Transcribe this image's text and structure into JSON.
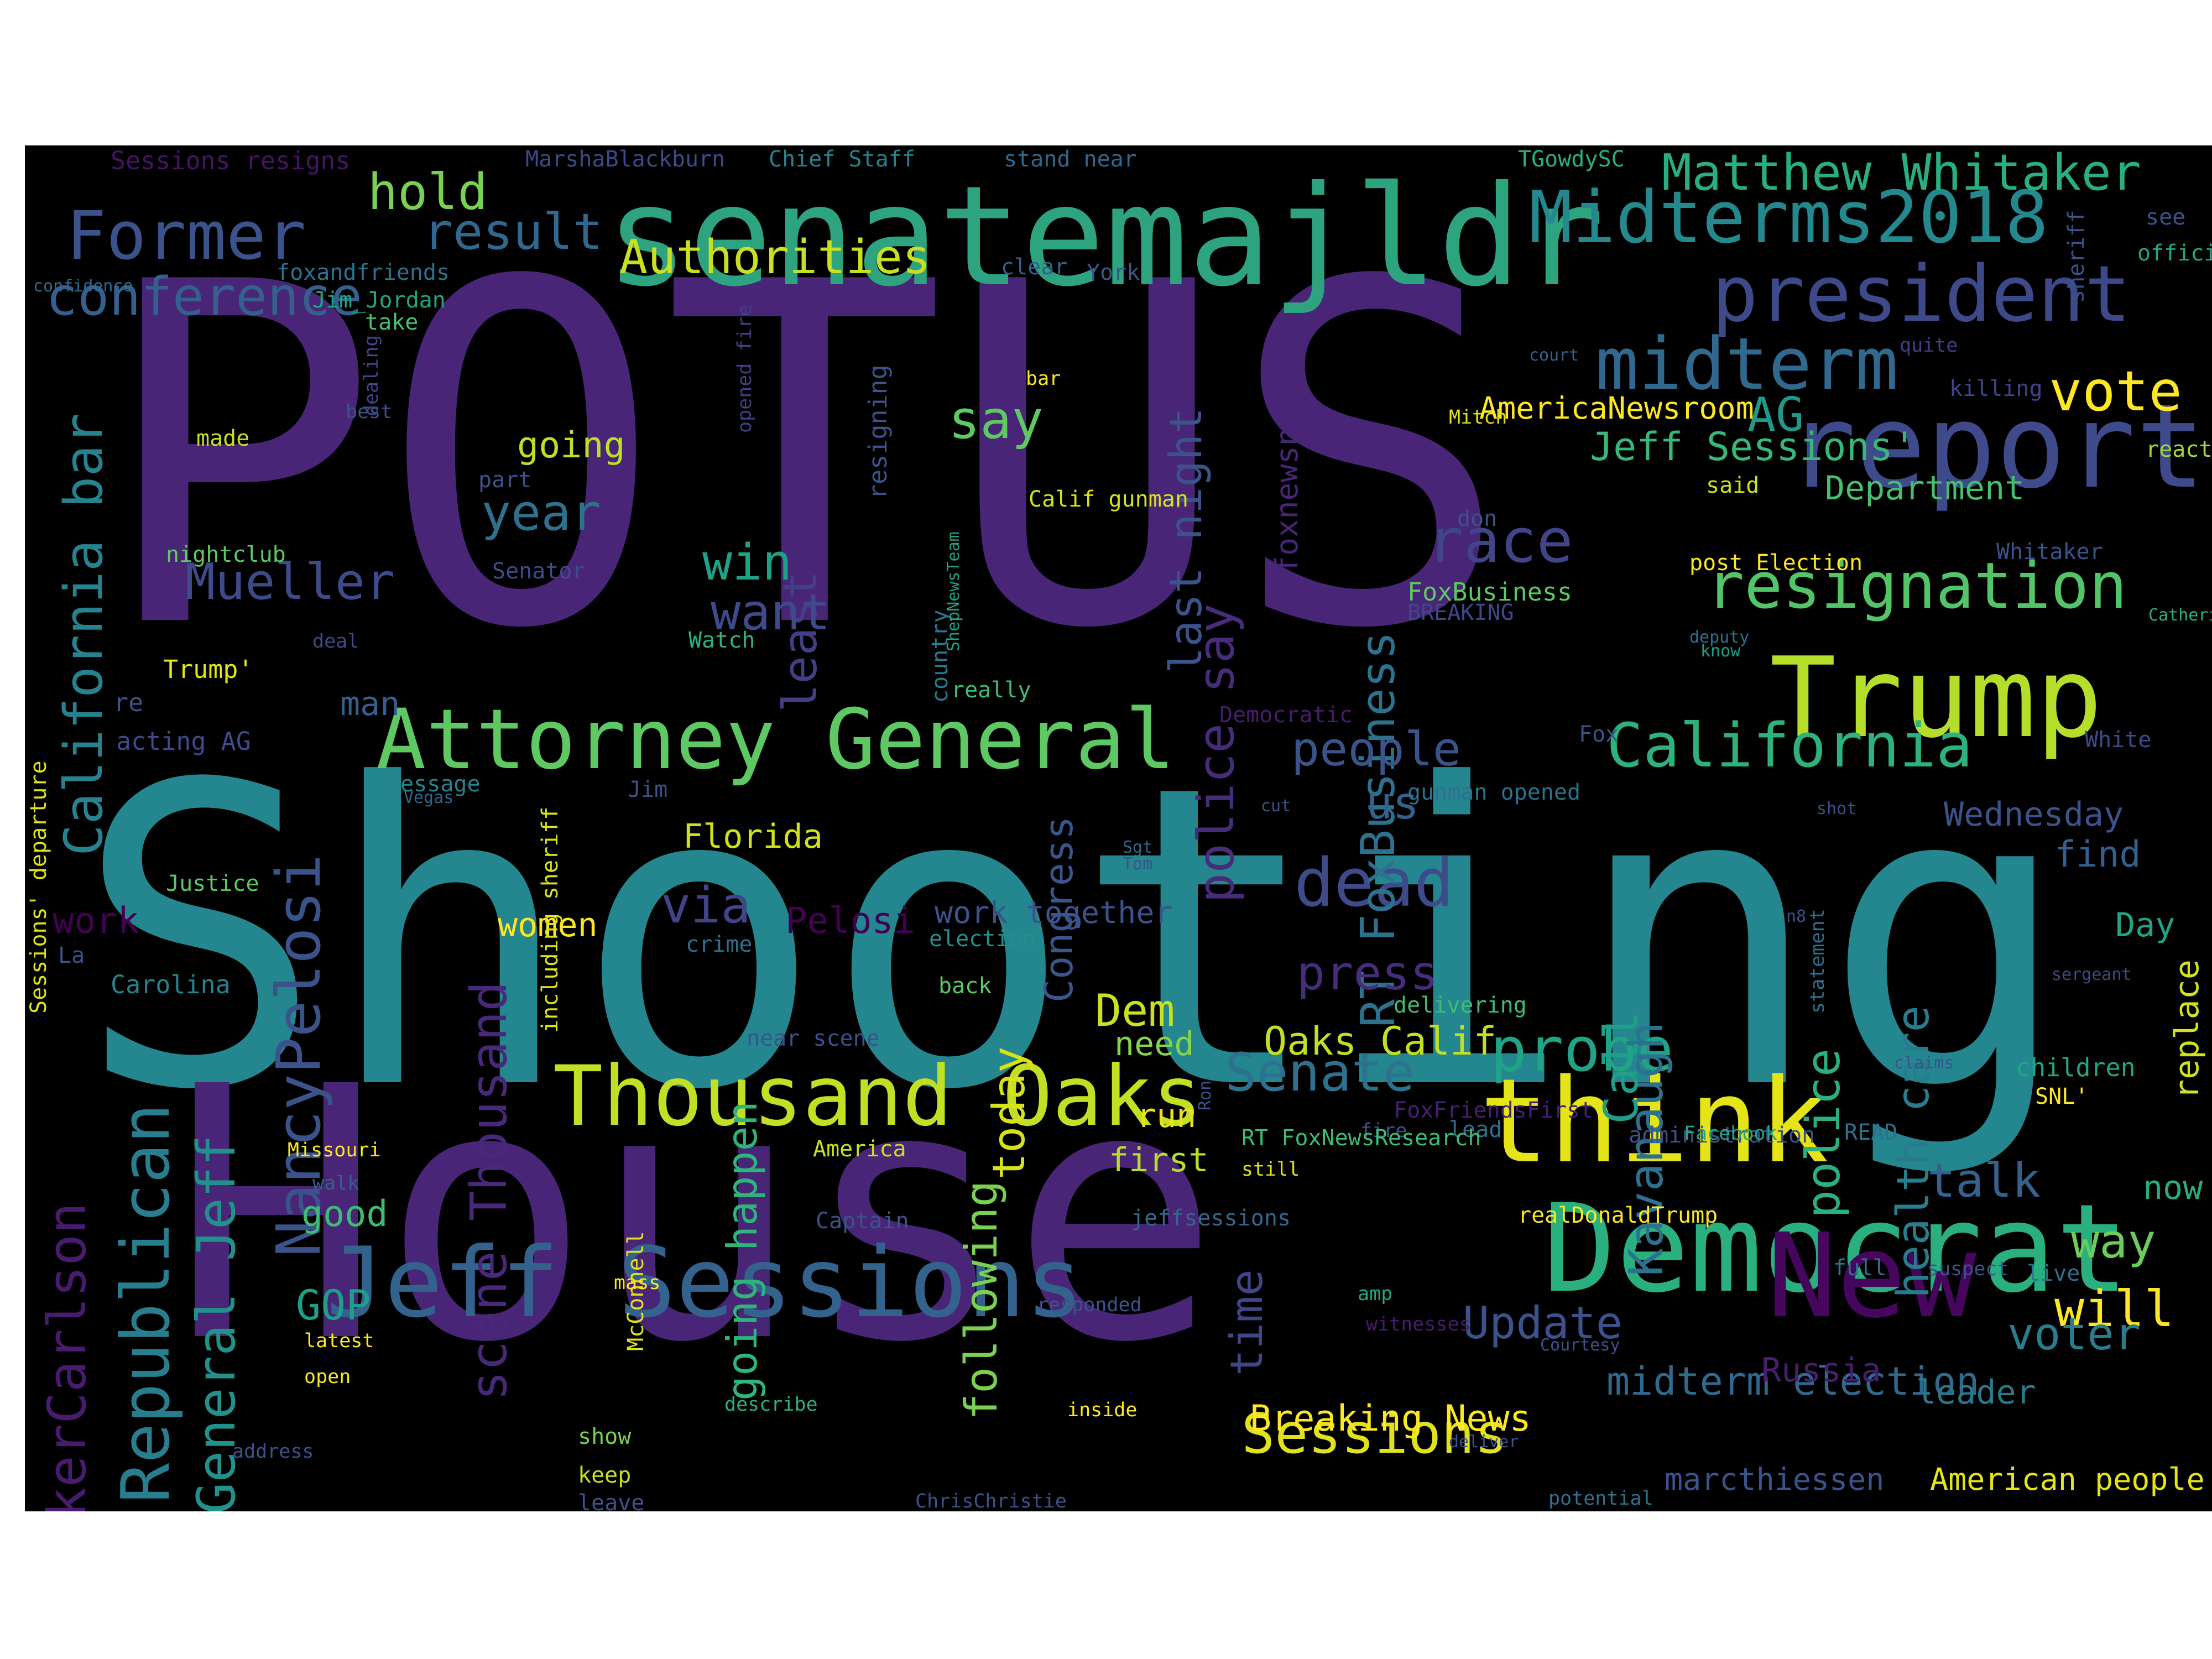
{
  "wordcloud": {
    "background": "#000000",
    "words": [
      {
        "text": "POTUS",
        "color": "#482576"
      },
      {
        "text": "Shooting",
        "color": "#24868e"
      },
      {
        "text": "House",
        "color": "#482576"
      },
      {
        "text": "senatemajldr",
        "color": "#2ea37f"
      },
      {
        "text": "report",
        "color": "#3e4a89"
      },
      {
        "text": "Trump",
        "color": "#b5de2b"
      },
      {
        "text": "Democrat",
        "color": "#2ab07f"
      },
      {
        "text": "think",
        "color": "#e4e419"
      },
      {
        "text": "New",
        "color": "#46065e"
      },
      {
        "text": "Jeff Sessions",
        "color": "#33638d"
      },
      {
        "text": "Attorney General",
        "color": "#5ec962"
      },
      {
        "text": "Thousand Oaks",
        "color": "#c2df23"
      },
      {
        "text": "president",
        "color": "#3e4989"
      },
      {
        "text": "Midterms2018",
        "color": "#23898e"
      },
      {
        "text": "midterm",
        "color": "#31688e"
      },
      {
        "text": "resignation",
        "color": "#52c569"
      },
      {
        "text": "California",
        "color": "#2db27d"
      },
      {
        "text": "Former",
        "color": "#3b528b"
      },
      {
        "text": "conference",
        "color": "#355f8d"
      },
      {
        "text": "Matthew Whitaker",
        "color": "#29af7f"
      },
      {
        "text": "vote",
        "color": "#fde725"
      },
      {
        "text": "race",
        "color": "#414487"
      },
      {
        "text": "dead",
        "color": "#3e4a89"
      },
      {
        "text": "probe",
        "color": "#20a386"
      },
      {
        "text": "Sessions",
        "color": "#e1e21b"
      },
      {
        "text": "Senate",
        "color": "#2c728e"
      },
      {
        "text": "Authorities",
        "color": "#c8e020"
      },
      {
        "text": "hold",
        "color": "#7ad151"
      },
      {
        "text": "result",
        "color": "#31688e"
      },
      {
        "text": "Republican",
        "color": "#287d8e"
      },
      {
        "text": "NancyPelosi",
        "color": "#3b528b"
      },
      {
        "text": "California bar",
        "color": "#26828e"
      },
      {
        "text": "TuckerCarlson",
        "color": "#481b6d"
      },
      {
        "text": "General Jeff",
        "color": "#21918c"
      },
      {
        "text": "scene Thousand",
        "color": "#482878"
      },
      {
        "text": "police say",
        "color": "#472c7a"
      },
      {
        "text": "RT FoxBusiness",
        "color": "#2c728e"
      },
      {
        "text": "Kavanaugh",
        "color": "#2c728e"
      },
      {
        "text": "police",
        "color": "#2ab07f"
      },
      {
        "text": "health care",
        "color": "#287c8e"
      },
      {
        "text": "Call",
        "color": "#1f9e89"
      },
      {
        "text": "least",
        "color": "#433e85"
      },
      {
        "text": "last night",
        "color": "#3b528b"
      },
      {
        "text": "time",
        "color": "#404688"
      },
      {
        "text": "following",
        "color": "#7ad151"
      },
      {
        "text": "today",
        "color": "#d8e219"
      },
      {
        "text": "going happen",
        "color": "#2fb47c"
      },
      {
        "text": "Congress",
        "color": "#3a548c"
      },
      {
        "text": "Mueller",
        "color": "#3e4a89"
      },
      {
        "text": "year",
        "color": "#2c728e"
      },
      {
        "text": "say",
        "color": "#5ec962"
      },
      {
        "text": "win",
        "color": "#1fa187"
      },
      {
        "text": "want",
        "color": "#3e4a89"
      },
      {
        "text": "via",
        "color": "#414487"
      },
      {
        "text": "press",
        "color": "#472c7a"
      },
      {
        "text": "people",
        "color": "#3b528b"
      },
      {
        "text": "us",
        "color": "#34618d"
      },
      {
        "text": "Update",
        "color": "#3b528b"
      },
      {
        "text": "talk",
        "color": "#34618d"
      },
      {
        "text": "way",
        "color": "#6ccd5a"
      },
      {
        "text": "will",
        "color": "#fde725"
      },
      {
        "text": "voter",
        "color": "#287d8e"
      },
      {
        "text": "Dem",
        "color": "#cae11f"
      },
      {
        "text": "GOP",
        "color": "#1f9e89"
      },
      {
        "text": "Jeff Sessions'",
        "color": "#37b878"
      },
      {
        "text": "AG",
        "color": "#1f9a8a"
      },
      {
        "text": "midterm election",
        "color": "#31688e"
      },
      {
        "text": "Breaking News",
        "color": "#fde725"
      },
      {
        "text": "marcthiessen",
        "color": "#3b528b"
      },
      {
        "text": "American people",
        "color": "#e5e419"
      },
      {
        "text": "Oaks Calif",
        "color": "#c2df23"
      },
      {
        "text": "going",
        "color": "#bddf26"
      },
      {
        "text": "Florida",
        "color": "#d0e11c"
      },
      {
        "text": "Pelosi",
        "color": "#440154"
      },
      {
        "text": "work together",
        "color": "#3b528b"
      },
      {
        "text": "women",
        "color": "#fde725"
      },
      {
        "text": "need",
        "color": "#86d549"
      },
      {
        "text": "run",
        "color": "#e7e419"
      },
      {
        "text": "first",
        "color": "#b8de29"
      },
      {
        "text": "good",
        "color": "#3dbc74"
      },
      {
        "text": "man",
        "color": "#355f8d"
      },
      {
        "text": "work",
        "color": "#440154"
      },
      {
        "text": "Department",
        "color": "#44bf70"
      },
      {
        "text": "Wednesday",
        "color": "#3b528b"
      },
      {
        "text": "find",
        "color": "#355f8d"
      },
      {
        "text": "Day",
        "color": "#20a486"
      },
      {
        "text": "replace",
        "color": "#d2e21b"
      },
      {
        "text": "now",
        "color": "#27ad81"
      },
      {
        "text": "leader",
        "color": "#2a788e"
      },
      {
        "text": "Russia",
        "color": "#481f70"
      },
      {
        "text": "AmericaNewsroom",
        "color": "#fde725"
      },
      {
        "text": "foxnewsnight",
        "color": "#482677"
      },
      {
        "text": "Sessions resigns",
        "color": "#471365"
      },
      {
        "text": "MarshaBlackburn",
        "color": "#3e4989"
      },
      {
        "text": "Chief Staff",
        "color": "#26828e"
      },
      {
        "text": "stand near",
        "color": "#31688e"
      },
      {
        "text": "TGowdySC",
        "color": "#29af7f"
      },
      {
        "text": "sheriff",
        "color": "#3b528b"
      },
      {
        "text": "see",
        "color": "#3b528b"
      },
      {
        "text": "official",
        "color": "#22a785"
      },
      {
        "text": "confidence",
        "color": "#31688e"
      },
      {
        "text": "foxandfriends",
        "color": "#2c728e"
      },
      {
        "text": "Jim_Jordan",
        "color": "#22a785"
      },
      {
        "text": "take",
        "color": "#4ac16d"
      },
      {
        "text": "clear",
        "color": "#355f8d"
      },
      {
        "text": "York",
        "color": "#3a548c"
      },
      {
        "text": "court",
        "color": "#355f8d"
      },
      {
        "text": "quite",
        "color": "#433e85"
      },
      {
        "text": "killing",
        "color": "#414487"
      },
      {
        "text": "reacts",
        "color": "#9fda3a"
      },
      {
        "text": "Mitch",
        "color": "#dde318"
      },
      {
        "text": "bar",
        "color": "#fde725"
      },
      {
        "text": "best",
        "color": "#3b528b"
      },
      {
        "text": "made",
        "color": "#c8e020"
      },
      {
        "text": "dealing",
        "color": "#404688"
      },
      {
        "text": "opened fire",
        "color": "#433e85"
      },
      {
        "text": "resigning",
        "color": "#3b528b"
      },
      {
        "text": "part",
        "color": "#3b528b"
      },
      {
        "text": "Calif gunman",
        "color": "#d8e219"
      },
      {
        "text": "nightclub",
        "color": "#5ec962"
      },
      {
        "text": "Senator",
        "color": "#3e4a89"
      },
      {
        "text": "don",
        "color": "#3b528b"
      },
      {
        "text": "said",
        "color": "#cde11d"
      },
      {
        "text": "Whitaker",
        "color": "#3b528b"
      },
      {
        "text": "post Election",
        "color": "#fde725"
      },
      {
        "text": "FoxBusiness",
        "color": "#5ec962"
      },
      {
        "text": "BREAKING",
        "color": "#404688"
      },
      {
        "text": "deputy",
        "color": "#2c728e"
      },
      {
        "text": "know",
        "color": "#1f9e89"
      },
      {
        "text": "Catherine Herridge",
        "color": "#2ab07f"
      },
      {
        "text": "country",
        "color": "#2a788e"
      },
      {
        "text": "ShepNewsTeam",
        "color": "#1fa187"
      },
      {
        "text": "Watch",
        "color": "#2db27d"
      },
      {
        "text": "really",
        "color": "#3dbc74"
      },
      {
        "text": "Democratic",
        "color": "#481b6d"
      },
      {
        "text": "Fox",
        "color": "#3b528b"
      },
      {
        "text": "White",
        "color": "#3e4a89"
      },
      {
        "text": "Trump'",
        "color": "#e5e419"
      },
      {
        "text": "deal",
        "color": "#3e4a89"
      },
      {
        "text": "re",
        "color": "#3b528b"
      },
      {
        "text": "acting AG",
        "color": "#3e4a89"
      },
      {
        "text": "message",
        "color": "#26828e"
      },
      {
        "text": "Vegas",
        "color": "#31688e"
      },
      {
        "text": "Jim",
        "color": "#3b528b"
      },
      {
        "text": "cut",
        "color": "#3b528b"
      },
      {
        "text": "gunman opened",
        "color": "#2c728e"
      },
      {
        "text": "shot",
        "color": "#3b528b"
      },
      {
        "text": "Sessions' departure",
        "color": "#dde318"
      },
      {
        "text": "including sheriff",
        "color": "#dde318"
      },
      {
        "text": "Justice",
        "color": "#5ec962"
      },
      {
        "text": "La",
        "color": "#3b528b"
      },
      {
        "text": "Carolina",
        "color": "#26828e"
      },
      {
        "text": "Sgt",
        "color": "#31688e"
      },
      {
        "text": "Tom",
        "color": "#3b528b"
      },
      {
        "text": "n8",
        "color": "#3b528b"
      },
      {
        "text": "statement",
        "color": "#2c728e"
      },
      {
        "text": "sergeant",
        "color": "#3e4a89"
      },
      {
        "text": "crime",
        "color": "#2c728e"
      },
      {
        "text": "election",
        "color": "#21918c"
      },
      {
        "text": "back",
        "color": "#5ec962"
      },
      {
        "text": "delivering",
        "color": "#40bd72"
      },
      {
        "text": "near scene",
        "color": "#3b528b"
      },
      {
        "text": "FoxFriendsFirst",
        "color": "#481f70"
      },
      {
        "text": "fire",
        "color": "#3b528b"
      },
      {
        "text": "lead",
        "color": "#2c728e"
      },
      {
        "text": "administration",
        "color": "#3b528b"
      },
      {
        "text": "READ",
        "color": "#2c728e"
      },
      {
        "text": "claims",
        "color": "#3b528b"
      },
      {
        "text": "children",
        "color": "#22a785"
      },
      {
        "text": "SNL'",
        "color": "#fde725"
      },
      {
        "text": "Ron",
        "color": "#3b528b"
      },
      {
        "text": "Missouri",
        "color": "#fde725"
      },
      {
        "text": "America",
        "color": "#c8e020"
      },
      {
        "text": "RT FoxNewsResearch",
        "color": "#3dbc74"
      },
      {
        "text": "Facebook",
        "color": "#22a785"
      },
      {
        "text": "still",
        "color": "#e1e21b"
      },
      {
        "text": "walk",
        "color": "#355f8d"
      },
      {
        "text": "Captain",
        "color": "#3b528b"
      },
      {
        "text": "jeffsessions",
        "color": "#31688e"
      },
      {
        "text": "realDonaldTrump",
        "color": "#fde725"
      },
      {
        "text": "McConnell",
        "color": "#dde318"
      },
      {
        "text": "mass",
        "color": "#fde725"
      },
      {
        "text": "full",
        "color": "#2c728e"
      },
      {
        "text": "suspect",
        "color": "#3b528b"
      },
      {
        "text": "live",
        "color": "#2c728e"
      },
      {
        "text": "responded",
        "color": "#3b528b"
      },
      {
        "text": "amp",
        "color": "#22a785"
      },
      {
        "text": "witnesses",
        "color": "#481b6d"
      },
      {
        "text": "Courtesy",
        "color": "#3b528b"
      },
      {
        "text": "latest",
        "color": "#fde725"
      },
      {
        "text": "open",
        "color": "#fde725"
      },
      {
        "text": "describe",
        "color": "#2ab07f"
      },
      {
        "text": "inside",
        "color": "#fde725"
      },
      {
        "text": "show",
        "color": "#7ad151"
      },
      {
        "text": "deliver",
        "color": "#3b528b"
      },
      {
        "text": "address",
        "color": "#3b528b"
      },
      {
        "text": "keep",
        "color": "#c8e020"
      },
      {
        "text": "leave",
        "color": "#3b528b"
      },
      {
        "text": "ChrisChristie",
        "color": "#3b528b"
      },
      {
        "text": "potential",
        "color": "#2c728e"
      }
    ]
  }
}
